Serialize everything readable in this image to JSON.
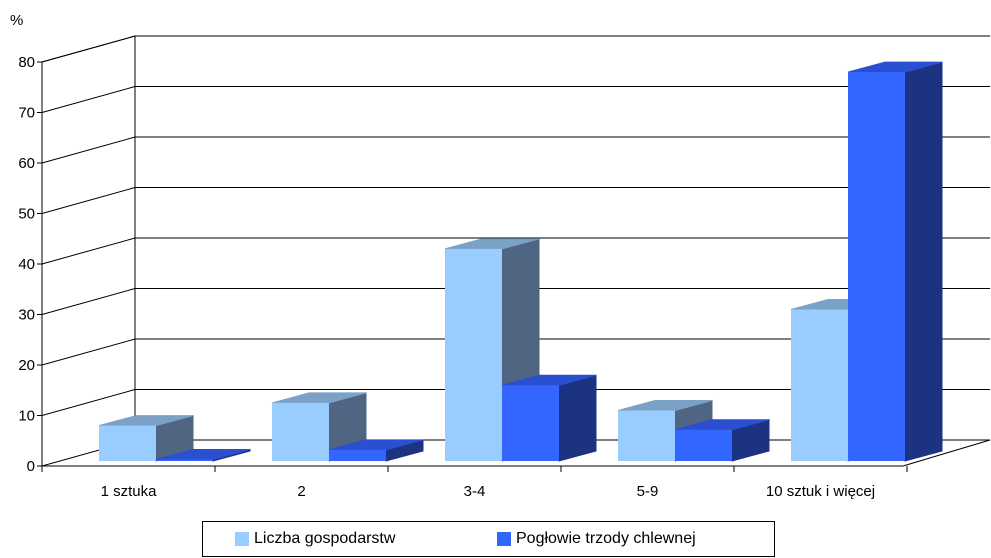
{
  "chart_data": {
    "type": "bar",
    "y_unit_label": "%",
    "ylim": [
      0,
      80
    ],
    "yticks": [
      0,
      10,
      20,
      30,
      40,
      50,
      60,
      70,
      80
    ],
    "categories": [
      "1 sztuka",
      "2",
      "3-4",
      "5-9",
      "10 sztuk i więcej"
    ],
    "series": [
      {
        "name": "Liczba gospodarstw",
        "values": [
          7,
          11.5,
          42,
          10,
          30
        ],
        "color": "#99ccff"
      },
      {
        "name": "Pogłowie trzody chlewnej",
        "values": [
          0.3,
          2.2,
          15,
          6.2,
          77
        ],
        "color": "#3366ff"
      }
    ],
    "grid": true,
    "legend_position": "bottom"
  }
}
